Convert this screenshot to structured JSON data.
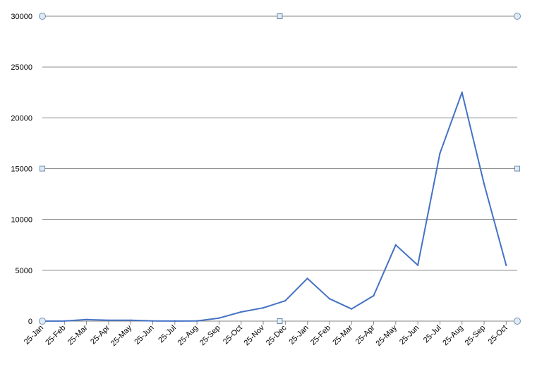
{
  "chart_data": {
    "type": "line",
    "title": "",
    "xlabel": "",
    "ylabel": "",
    "ylim": [
      0,
      30000
    ],
    "yticks": [
      0,
      5000,
      10000,
      15000,
      20000,
      25000,
      30000
    ],
    "grid": "horizontal",
    "legend": "none",
    "x_tick_labels": [
      "25-Jan",
      "25-Feb",
      "25-Mar",
      "25-Apr",
      "25-May",
      "25-Jun",
      "25-Jul",
      "25-Aug",
      "25-Sep",
      "25-Oct",
      "25-Nov",
      "25-Dec",
      "25-Jan",
      "25-Feb",
      "25-Mar",
      "25-Apr",
      "25-May",
      "25-Jun",
      "25-Jul",
      "25-Aug",
      "25-Sep",
      "25-Oct"
    ],
    "series": [
      {
        "color": "#4472c4",
        "x": [
          "25-Jan",
          "25-Feb",
          "25-Mar",
          "25-Apr",
          "25-May",
          "25-Jun",
          "25-Jul",
          "25-Aug",
          "25-Sep",
          "25-Oct",
          "25-Nov",
          "25-Dec",
          "25-Jan",
          "25-Feb",
          "25-Mar",
          "25-Apr",
          "25-May",
          "25-Jun",
          "25-Jul",
          "25-Aug",
          "25-Sep",
          "25-Oct"
        ],
        "values": [
          0,
          10,
          150,
          80,
          80,
          20,
          10,
          20,
          300,
          900,
          1300,
          2000,
          4200,
          2200,
          1200,
          2500,
          7500,
          5500,
          16500,
          22500,
          13500,
          5500
        ]
      }
    ]
  }
}
